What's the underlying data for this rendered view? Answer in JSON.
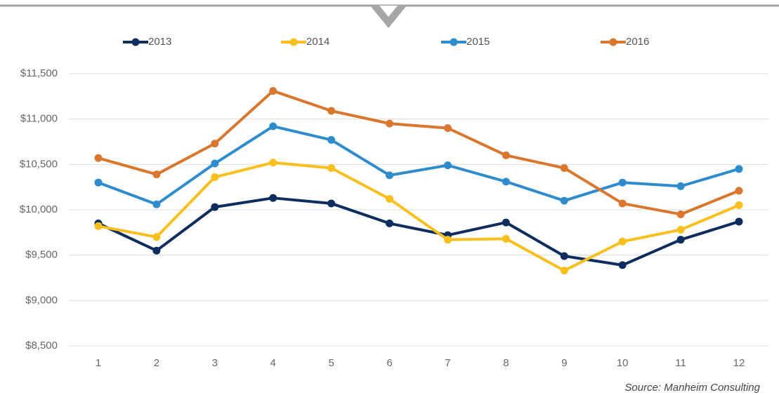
{
  "chart_data": {
    "type": "line",
    "categories": [
      "1",
      "2",
      "3",
      "4",
      "5",
      "6",
      "7",
      "8",
      "9",
      "10",
      "11",
      "12"
    ],
    "series": [
      {
        "name": "2013",
        "color": "#0d2d5e",
        "values": [
          9850,
          9550,
          10030,
          10130,
          10070,
          9850,
          9720,
          9860,
          9490,
          9390,
          9670,
          9870
        ]
      },
      {
        "name": "2014",
        "color": "#f9bf1e",
        "values": [
          9820,
          9700,
          10360,
          10520,
          10460,
          10120,
          9670,
          9680,
          9330,
          9650,
          9780,
          10050
        ]
      },
      {
        "name": "2015",
        "color": "#2e8ccd",
        "values": [
          10300,
          10060,
          10510,
          10920,
          10770,
          10380,
          10490,
          10310,
          10100,
          10300,
          10260,
          10450
        ]
      },
      {
        "name": "2016",
        "color": "#d9772e",
        "values": [
          10570,
          10390,
          10730,
          11310,
          11090,
          10950,
          10900,
          10600,
          10460,
          10070,
          9950,
          10210
        ]
      }
    ],
    "ylim": [
      8500,
      11500
    ],
    "yticks": [
      {
        "value": 8500,
        "label": "$8,500"
      },
      {
        "value": 9000,
        "label": "$9,000"
      },
      {
        "value": 9500,
        "label": "$9,500"
      },
      {
        "value": 10000,
        "label": "$10,000"
      },
      {
        "value": 10500,
        "label": "$10,500"
      },
      {
        "value": 11000,
        "label": "$11,000"
      },
      {
        "value": 11500,
        "label": "$11,500"
      }
    ],
    "grid": true,
    "legend": "top",
    "source": "Source: Manheim Consulting"
  }
}
